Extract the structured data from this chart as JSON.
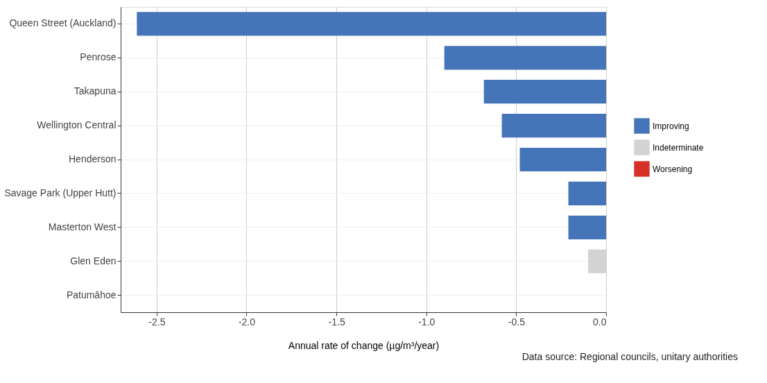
{
  "chart_data": {
    "type": "bar",
    "orientation": "horizontal",
    "categories": [
      "Queen Street (Auckland)",
      "Penrose",
      "Takapuna",
      "Wellington Central",
      "Henderson",
      "Savage Park (Upper Hutt)",
      "Masterton West",
      "Glen Eden",
      "Patumāhoe"
    ],
    "series": [
      {
        "name": "Improving",
        "color": "#4575b8",
        "values": [
          -2.61,
          -0.9,
          -0.68,
          -0.58,
          -0.48,
          -0.21,
          -0.21,
          null,
          null
        ]
      },
      {
        "name": "Indeterminate",
        "color": "#d3d3d3",
        "values": [
          null,
          null,
          null,
          null,
          null,
          null,
          null,
          -0.1,
          null
        ]
      },
      {
        "name": "Worsening",
        "color": "#d73027",
        "values": [
          null,
          null,
          null,
          null,
          null,
          null,
          null,
          null,
          null
        ]
      }
    ],
    "xlabel": "Annual rate of change (µg/m³/year)",
    "xlim": [
      -2.7,
      0.0
    ],
    "xticks": [
      -2.5,
      {
        "value": -2.0,
        "label": "-2.0"
      },
      -1.5,
      {
        "value": -1.0,
        "label": "-1.0"
      },
      -0.5,
      {
        "value": 0.0,
        "label": "0.0"
      }
    ],
    "grid": true,
    "legend": "right",
    "annotations": [
      "Data source: Regional councils, unitary authorities"
    ]
  }
}
